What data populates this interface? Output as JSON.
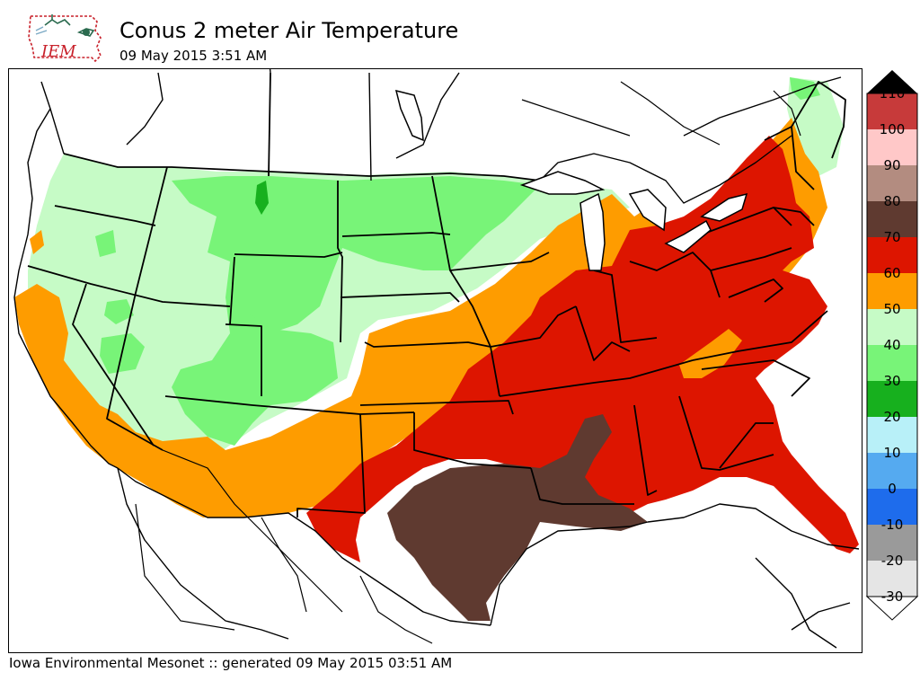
{
  "header": {
    "logo_text": "IEM",
    "title": "Conus 2 meter Air Temperature",
    "subtitle": "09 May 2015 3:51 AM"
  },
  "footer": {
    "text": "Iowa Environmental Mesonet :: generated 09 May 2015 03:51 AM"
  },
  "legend": {
    "bins": [
      {
        "label": "110",
        "color": "#c73a3a"
      },
      {
        "label": "100",
        "color": "#ffc8c8"
      },
      {
        "label": "90",
        "color": "#b38c80"
      },
      {
        "label": "80",
        "color": "#5f3a30"
      },
      {
        "label": "70",
        "color": "#dd1500"
      },
      {
        "label": "60",
        "color": "#fe9c00"
      },
      {
        "label": "50",
        "color": "#c6fbc6"
      },
      {
        "label": "40",
        "color": "#78f478"
      },
      {
        "label": "30",
        "color": "#17b01e"
      },
      {
        "label": "20",
        "color": "#b8f0f8"
      },
      {
        "label": "10",
        "color": "#55aaf0"
      },
      {
        "label": "0",
        "color": "#1e6cec"
      },
      {
        "label": "-10",
        "color": "#9a9a9a"
      },
      {
        "label": "-20",
        "color": "#e5e5e5"
      },
      {
        "label": "-30",
        "color": "#ffffff"
      }
    ]
  },
  "colors": {
    "lightgreen": "#c6fbc6",
    "green": "#78f478",
    "darkgreen": "#17b01e",
    "orange": "#fe9c00",
    "red": "#dd1500",
    "brown": "#5f3a30"
  }
}
